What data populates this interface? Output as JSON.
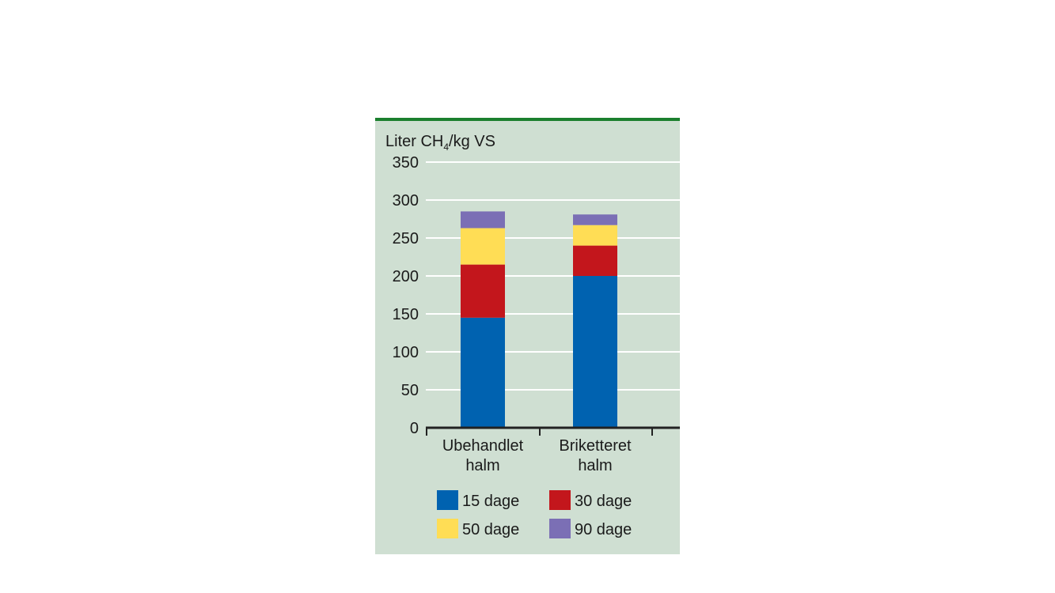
{
  "colors": {
    "panel_bg": "#cfdfd2",
    "top_rule": "#1b7f2e",
    "grid": "#ffffff",
    "axis": "#222222",
    "text": "#1a1a1a"
  },
  "chart_data": {
    "type": "bar",
    "stacked": true,
    "ylabel_main": "Liter CH",
    "ylabel_sub": "4",
    "ylabel_tail": "/kg VS",
    "ylim": [
      0,
      350
    ],
    "yticks": [
      0,
      50,
      100,
      150,
      200,
      250,
      300,
      350
    ],
    "grid": true,
    "legend_position": "bottom",
    "categories": [
      [
        "Ubehandlet",
        "halm"
      ],
      [
        "Briketteret",
        "halm"
      ]
    ],
    "series": [
      {
        "name": "15 dage",
        "color": "#0062b0",
        "values": [
          145,
          200
        ]
      },
      {
        "name": "30 dage",
        "color": "#c3161c",
        "values": [
          70,
          40
        ]
      },
      {
        "name": "50 dage",
        "color": "#ffdd55",
        "values": [
          48,
          27
        ]
      },
      {
        "name": "90 dage",
        "color": "#7b6fb5",
        "values": [
          22,
          14
        ]
      }
    ]
  }
}
